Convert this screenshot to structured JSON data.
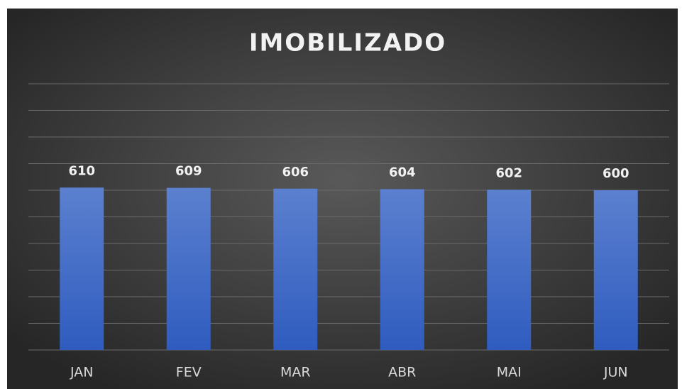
{
  "chart_data": {
    "type": "bar",
    "title": "IMOBILIZADO",
    "categories": [
      "JAN",
      "FEV",
      "MAR",
      "ABR",
      "MAI",
      "JUN"
    ],
    "values": [
      610,
      609,
      606,
      604,
      602,
      600
    ],
    "color": "#4472c4",
    "ylim": [
      0,
      1000
    ],
    "yticks": [
      0,
      100,
      200,
      300,
      400,
      500,
      600,
      700,
      800,
      900,
      1000
    ],
    "grid": true
  }
}
